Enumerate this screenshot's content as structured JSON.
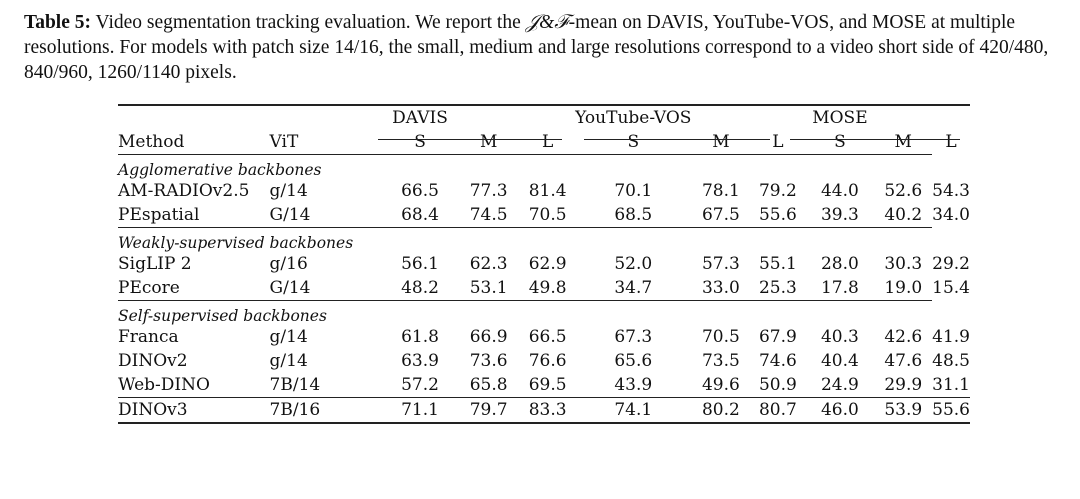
{
  "caption": {
    "label": "Table 5:",
    "text_before_math": " Video segmentation tracking evaluation. We report the ",
    "math": "𝒥&ℱ",
    "text_after_math": "-mean on DAVIS, YouTube-VOS, and MOSE at multiple resolutions. For models with patch size 14/16, the small, medium and large resolutions correspond to a video short side of 420/480, 840/960, 1260/1140 pixels."
  },
  "table": {
    "groups": [
      "DAVIS",
      "YouTube-VOS",
      "MOSE"
    ],
    "columns": {
      "method": "Method",
      "vit": "ViT",
      "sizes": [
        "S",
        "M",
        "L",
        "S",
        "M",
        "L",
        "S",
        "M",
        "L"
      ]
    },
    "sections": [
      {
        "title": "Agglomerative backbones",
        "rows": [
          {
            "method": "AM-RADIOv2.5",
            "vit": "g/14",
            "values": [
              "66.5",
              "77.3",
              "81.4",
              "70.1",
              "78.1",
              "79.2",
              "44.0",
              "52.6",
              "54.3"
            ]
          },
          {
            "method": "PEspatial",
            "vit": "G/14",
            "values": [
              "68.4",
              "74.5",
              "70.5",
              "68.5",
              "67.5",
              "55.6",
              "39.3",
              "40.2",
              "34.0"
            ]
          }
        ]
      },
      {
        "title": "Weakly-supervised backbones",
        "rows": [
          {
            "method": "SigLIP 2",
            "vit": "g/16",
            "values": [
              "56.1",
              "62.3",
              "62.9",
              "52.0",
              "57.3",
              "55.1",
              "28.0",
              "30.3",
              "29.2"
            ]
          },
          {
            "method": "PEcore",
            "vit": "G/14",
            "values": [
              "48.2",
              "53.1",
              "49.8",
              "34.7",
              "33.0",
              "25.3",
              "17.8",
              "19.0",
              "15.4"
            ]
          }
        ]
      },
      {
        "title": "Self-supervised backbones",
        "rows": [
          {
            "method": "Franca",
            "vit": "g/14",
            "values": [
              "61.8",
              "66.9",
              "66.5",
              "67.3",
              "70.5",
              "67.9",
              "40.3",
              "42.6",
              "41.9"
            ]
          },
          {
            "method": "DINOv2",
            "vit": "g/14",
            "values": [
              "63.9",
              "73.6",
              "76.6",
              "65.6",
              "73.5",
              "74.6",
              "40.4",
              "47.6",
              "48.5"
            ]
          },
          {
            "method": "Web-DINO",
            "vit": "7B/14",
            "values": [
              "57.2",
              "65.8",
              "69.5",
              "43.9",
              "49.6",
              "50.9",
              "24.9",
              "29.9",
              "31.1"
            ]
          }
        ]
      }
    ],
    "final": {
      "method": "DINOv3",
      "vit": "7B/16",
      "values": [
        "71.1",
        "79.7",
        "83.3",
        "74.1",
        "80.2",
        "80.7",
        "46.0",
        "53.9",
        "55.6"
      ]
    }
  }
}
